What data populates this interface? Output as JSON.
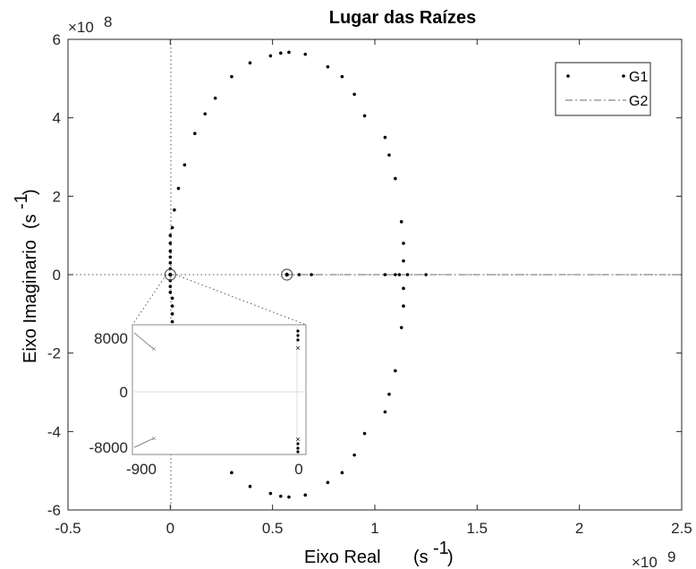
{
  "chart_data": {
    "type": "scatter",
    "title": "Lugar das Raízes",
    "xlabel": "Eixo Real",
    "xlabel_unit": "(s",
    "xlabel_unit_sup": "-1",
    "xlabel_unit_close": ")",
    "ylabel": "Eixo Imaginario",
    "ylabel_unit": "(s",
    "ylabel_unit_sup": "-1",
    "ylabel_unit_close": ")",
    "x_exponent_base": "×10",
    "x_exponent_power": "9",
    "y_exponent_base": "×10",
    "y_exponent_power": "8",
    "xlim": [
      -0.5,
      2.5
    ],
    "ylim": [
      -6,
      6
    ],
    "xticks": [
      "-0.5",
      "0",
      "0.5",
      "1",
      "1.5",
      "2",
      "2.5"
    ],
    "yticks": [
      "-6",
      "-4",
      "-2",
      "0",
      "2",
      "4",
      "6"
    ],
    "grid": false,
    "legend_position": "top-right",
    "series": [
      {
        "name": "G1",
        "style": "dots",
        "color": "#000000",
        "points": [
          [
            0.54,
            5.65
          ],
          [
            0.58,
            5.67
          ],
          [
            0.66,
            5.62
          ],
          [
            0.49,
            5.58
          ],
          [
            0.39,
            5.4
          ],
          [
            0.3,
            5.05
          ],
          [
            0.22,
            4.5
          ],
          [
            0.17,
            4.1
          ],
          [
            0.12,
            3.6
          ],
          [
            0.07,
            2.8
          ],
          [
            0.04,
            2.2
          ],
          [
            0.02,
            1.65
          ],
          [
            0.01,
            1.2
          ],
          [
            0.77,
            5.3
          ],
          [
            0.84,
            5.05
          ],
          [
            0.9,
            4.6
          ],
          [
            0.95,
            4.05
          ],
          [
            1.05,
            3.5
          ],
          [
            1.07,
            3.05
          ],
          [
            1.1,
            2.45
          ],
          [
            1.13,
            1.35
          ],
          [
            1.14,
            0.8
          ],
          [
            1.14,
            0.35
          ],
          [
            0.54,
            -5.65
          ],
          [
            0.58,
            -5.67
          ],
          [
            0.66,
            -5.62
          ],
          [
            0.49,
            -5.58
          ],
          [
            0.39,
            -5.4
          ],
          [
            0.3,
            -5.05
          ],
          [
            0.77,
            -5.3
          ],
          [
            0.84,
            -5.05
          ],
          [
            0.9,
            -4.6
          ],
          [
            0.95,
            -4.05
          ],
          [
            1.05,
            -3.5
          ],
          [
            1.07,
            -3.05
          ],
          [
            1.1,
            -2.45
          ],
          [
            1.13,
            -1.35
          ],
          [
            1.14,
            -0.8
          ],
          [
            1.14,
            -0.35
          ],
          [
            0.01,
            -1.2
          ],
          [
            0.01,
            -1.0
          ],
          [
            0.01,
            -0.8
          ],
          [
            0.01,
            -0.6
          ],
          [
            0.0,
            1.0
          ],
          [
            0.0,
            0.8
          ],
          [
            0.0,
            0.6
          ],
          [
            0.0,
            0.45
          ],
          [
            0.0,
            0.3
          ],
          [
            0.0,
            0.15
          ],
          [
            0.0,
            -0.15
          ],
          [
            0.0,
            -0.3
          ],
          [
            0.0,
            -0.45
          ],
          [
            0.57,
            0.0
          ],
          [
            0.63,
            0.0
          ],
          [
            0.69,
            0.0
          ],
          [
            1.05,
            0.0
          ],
          [
            1.1,
            0.0
          ],
          [
            1.12,
            0.0
          ],
          [
            1.16,
            0.0
          ],
          [
            1.25,
            0.0
          ]
        ]
      },
      {
        "name": "G2",
        "style": "dash-dot",
        "color": "#888888",
        "x": [
          0.57,
          2.5
        ],
        "y": [
          0,
          0
        ]
      }
    ],
    "markers": [
      {
        "name": "circle-marker",
        "x": 0.0,
        "y": 0.0
      },
      {
        "name": "circle-marker",
        "x": 0.57,
        "y": 0.0
      }
    ],
    "inset": {
      "xticks": [
        "-900",
        "0"
      ],
      "yticks": [
        "8000",
        "0",
        "-8000"
      ],
      "xlim": [
        -1000,
        30
      ],
      "ylim": [
        -9000,
        9000
      ]
    }
  },
  "legend": {
    "g1": "G1",
    "g2": "G2"
  }
}
